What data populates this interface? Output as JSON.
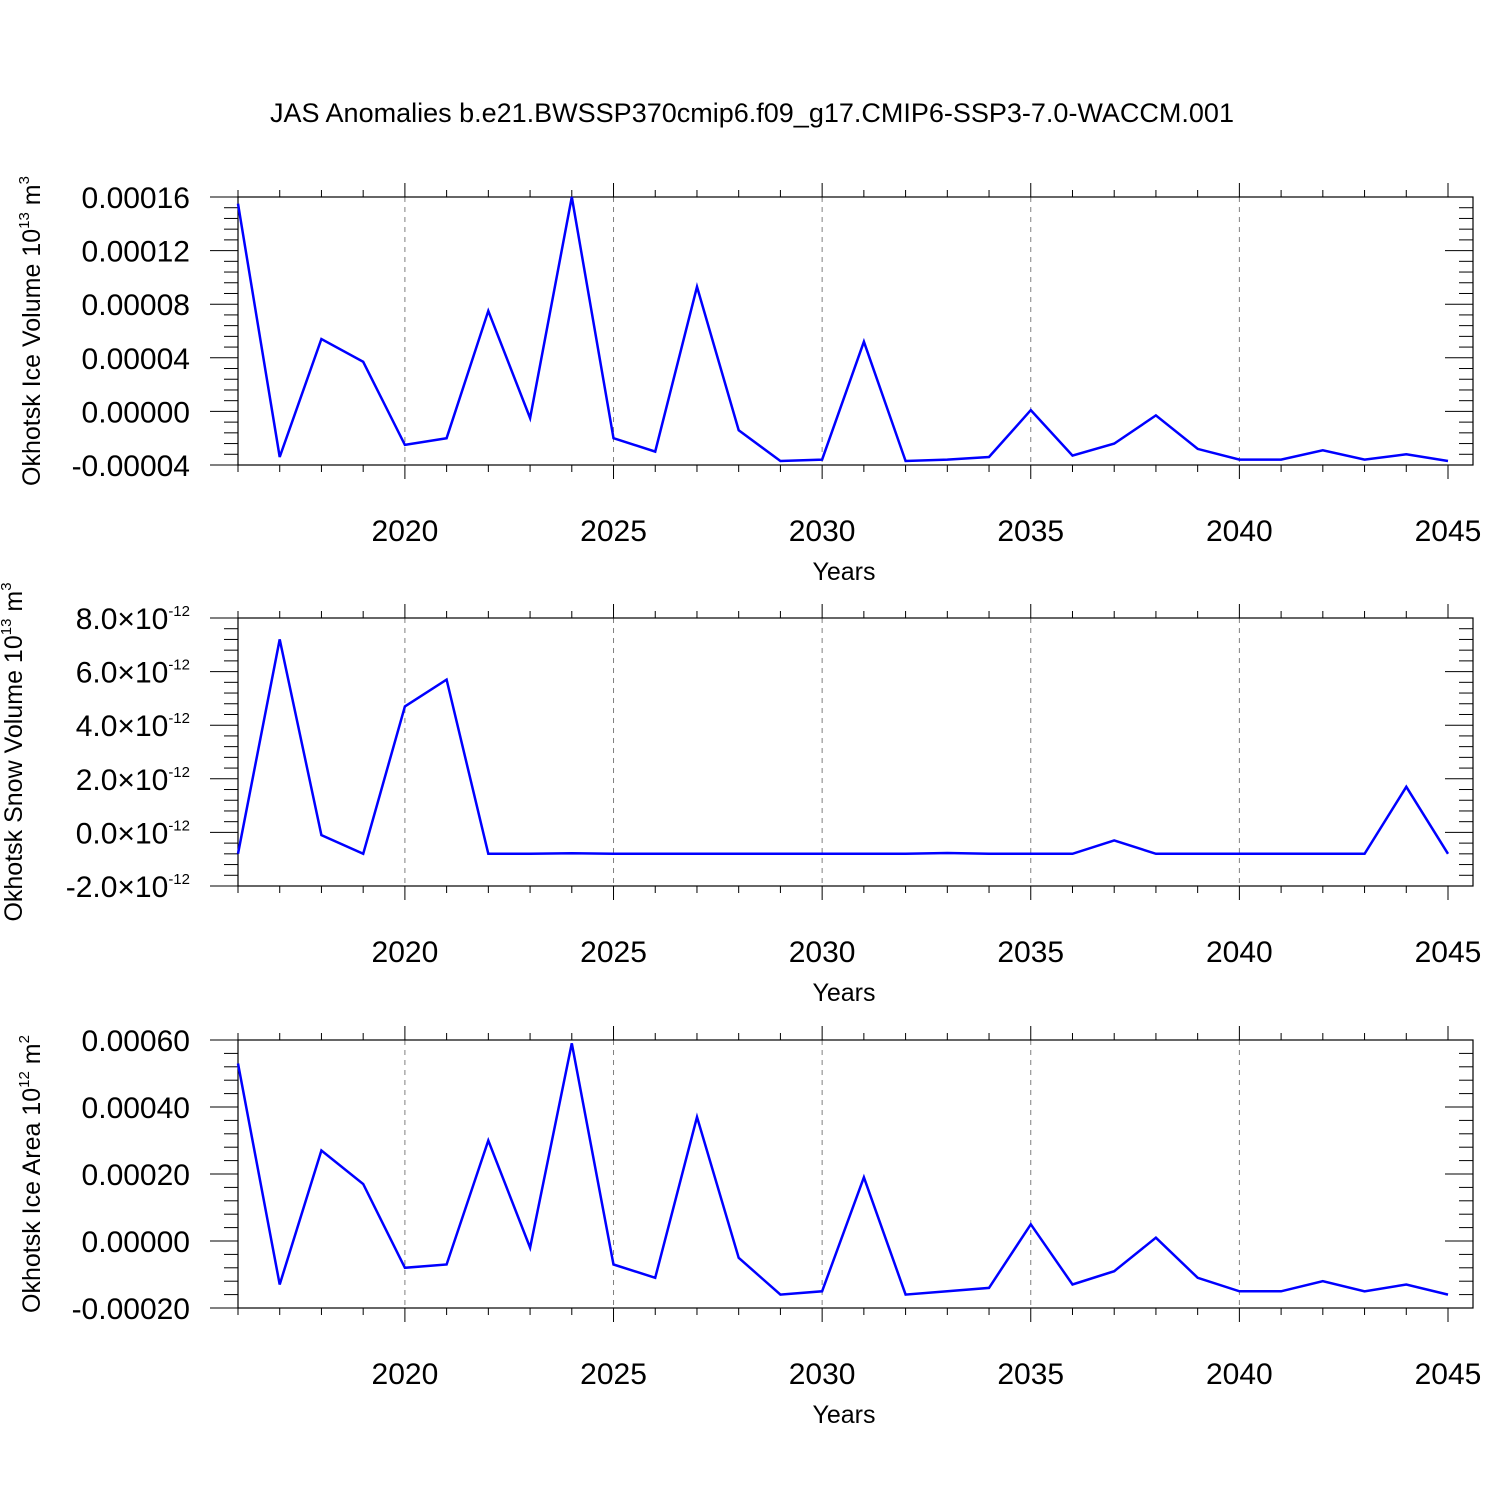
{
  "title": "JAS Anomalies b.e21.BWSSP370cmip6.f09_g17.CMIP6-SSP3-7.0-WACCM.001",
  "colors": {
    "line": "#0000ff",
    "axis": "#000000",
    "grid": "#808080",
    "background": "#ffffff"
  },
  "chart_data": [
    {
      "type": "line",
      "ylabel": "Okhotsk Ice Volume 10",
      "ylabel_exp": "13",
      "ylabel_unit": " m",
      "ylabel_unit_exp": "3",
      "xlabel": "Years",
      "xlim": [
        2016,
        2045
      ],
      "ylim": [
        -4e-05,
        0.00016
      ],
      "xticks": [
        "2020",
        "2025",
        "2030",
        "2035",
        "2040",
        "2045"
      ],
      "yticks": [
        "0.00016",
        "0.00012",
        "0.00008",
        "0.00004",
        "0.00000",
        "-0.00004"
      ],
      "grid": "vertical-dashed",
      "x": [
        2016,
        2017,
        2018,
        2019,
        2020,
        2021,
        2022,
        2023,
        2024,
        2025,
        2026,
        2027,
        2028,
        2029,
        2030,
        2031,
        2032,
        2033,
        2034,
        2035,
        2036,
        2037,
        2038,
        2039,
        2040,
        2041,
        2042,
        2043,
        2044,
        2045
      ],
      "series": [
        {
          "values": [
            0.000155,
            -3.4e-05,
            5.4e-05,
            3.7e-05,
            -2.5e-05,
            -2e-05,
            7.5e-05,
            -5e-06,
            0.00016,
            -2e-05,
            -3e-05,
            9.3e-05,
            -1.4e-05,
            -3.7e-05,
            -3.6e-05,
            5.2e-05,
            -3.7e-05,
            -3.6e-05,
            -3.4e-05,
            1e-06,
            -3.3e-05,
            -2.4e-05,
            -3e-06,
            -2.8e-05,
            -3.6e-05,
            -3.6e-05,
            -2.9e-05,
            -3.6e-05,
            -3.2e-05,
            -3.7e-05
          ]
        }
      ]
    },
    {
      "type": "line",
      "ylabel": "Okhotsk Snow Volume 10",
      "ylabel_exp": "13",
      "ylabel_unit": " m",
      "ylabel_unit_exp": "3",
      "xlabel": "Years",
      "xlim": [
        2016,
        2045
      ],
      "ylim": [
        -2e-12,
        8e-12
      ],
      "xticks": [
        "2020",
        "2025",
        "2030",
        "2035",
        "2040",
        "2045"
      ],
      "yticks": [
        {
          "mant": "8.0",
          "exp": "-12"
        },
        {
          "mant": "6.0",
          "exp": "-12"
        },
        {
          "mant": "4.0",
          "exp": "-12"
        },
        {
          "mant": "2.0",
          "exp": "-12"
        },
        {
          "mant": "0.0",
          "exp": "-12"
        },
        {
          "mant": "-2.0",
          "exp": "-12"
        }
      ],
      "times_symbol": "×",
      "grid": "vertical-dashed",
      "x": [
        2016,
        2017,
        2018,
        2019,
        2020,
        2021,
        2022,
        2023,
        2024,
        2025,
        2026,
        2027,
        2028,
        2029,
        2030,
        2031,
        2032,
        2033,
        2034,
        2035,
        2036,
        2037,
        2038,
        2039,
        2040,
        2041,
        2042,
        2043,
        2044,
        2045
      ],
      "series": [
        {
          "values": [
            -8e-13,
            7.2e-12,
            -1e-13,
            -8e-13,
            4.7e-12,
            5.7e-12,
            -8e-13,
            -8e-13,
            -7.8e-13,
            -8e-13,
            -8e-13,
            -8e-13,
            -8e-13,
            -8e-13,
            -8e-13,
            -8e-13,
            -8e-13,
            -7.7e-13,
            -8e-13,
            -8e-13,
            -8e-13,
            -3e-13,
            -8e-13,
            -8e-13,
            -8e-13,
            -8e-13,
            -8e-13,
            -8e-13,
            1.7e-12,
            -8e-13
          ]
        }
      ]
    },
    {
      "type": "line",
      "ylabel": "Okhotsk Ice Area 10",
      "ylabel_exp": "12",
      "ylabel_unit": " m",
      "ylabel_unit_exp": "2",
      "xlabel": "Years",
      "xlim": [
        2016,
        2045
      ],
      "ylim": [
        -0.0002,
        0.0006
      ],
      "xticks": [
        "2020",
        "2025",
        "2030",
        "2035",
        "2040",
        "2045"
      ],
      "yticks": [
        "0.00060",
        "0.00040",
        "0.00020",
        "0.00000",
        "-0.00020"
      ],
      "grid": "vertical-dashed",
      "x": [
        2016,
        2017,
        2018,
        2019,
        2020,
        2021,
        2022,
        2023,
        2024,
        2025,
        2026,
        2027,
        2028,
        2029,
        2030,
        2031,
        2032,
        2033,
        2034,
        2035,
        2036,
        2037,
        2038,
        2039,
        2040,
        2041,
        2042,
        2043,
        2044,
        2045
      ],
      "series": [
        {
          "values": [
            0.00053,
            -0.00013,
            0.00027,
            0.00017,
            -8e-05,
            -7e-05,
            0.0003,
            -2e-05,
            0.00059,
            -7e-05,
            -0.00011,
            0.00037,
            -5e-05,
            -0.00016,
            -0.00015,
            0.00019,
            -0.00016,
            -0.00015,
            -0.00014,
            5e-05,
            -0.00013,
            -9e-05,
            1e-05,
            -0.00011,
            -0.00015,
            -0.00015,
            -0.00012,
            -0.00015,
            -0.00013,
            -0.00016
          ]
        }
      ]
    }
  ]
}
